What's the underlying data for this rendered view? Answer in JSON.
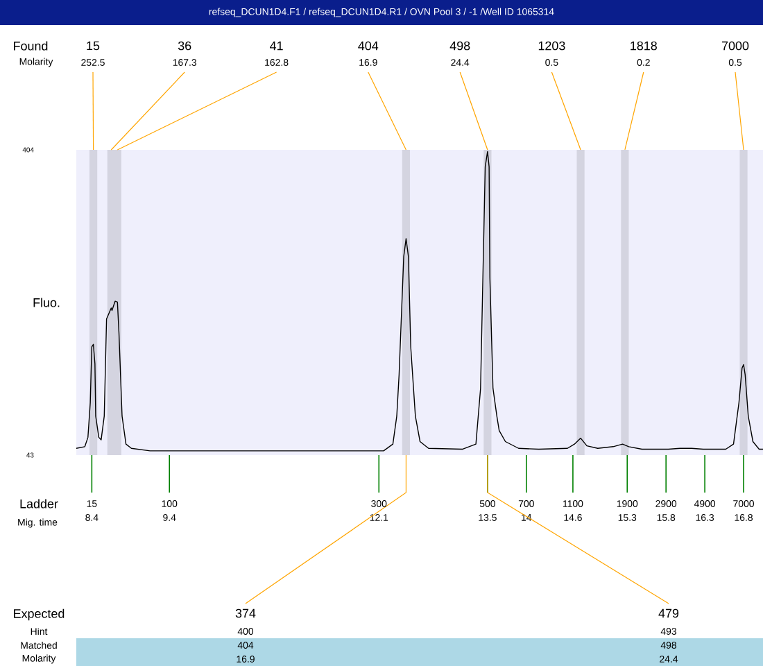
{
  "chart_data": {
    "type": "line",
    "title": "refseq_DCUN1D4.F1 / refseq_DCUN1D4.R1 / OVN Pool 3 / -1 /Well ID 1065314",
    "ylabel": "Fluo.",
    "xlabel": "Mig. time",
    "series": [
      {
        "color": "#000000",
        "x": [
          8.2,
          8.31,
          8.35,
          8.38,
          8.4,
          8.42,
          8.44,
          8.45,
          8.49,
          8.52,
          8.56,
          8.59,
          8.65,
          8.66,
          8.7,
          8.73,
          8.75,
          8.79,
          8.84,
          8.91,
          9.15,
          9.64,
          10.09,
          10.55,
          11.3,
          11.98,
          12.16,
          12.28,
          12.33,
          12.36,
          12.42,
          12.45,
          12.48,
          12.51,
          12.57,
          12.63,
          12.74,
          13.18,
          13.35,
          13.41,
          13.44,
          13.47,
          13.5,
          13.52,
          13.53,
          13.57,
          13.62,
          13.65,
          13.73,
          13.9,
          14.16,
          14.53,
          14.62,
          14.7,
          14.78,
          14.92,
          15.12,
          15.24,
          15.32,
          15.49,
          15.83,
          15.98,
          16.13,
          16.28,
          16.57,
          16.67,
          16.74,
          16.78,
          16.8,
          16.82,
          16.86,
          16.92,
          17.0,
          17.05
        ],
        "values": [
          51,
          53,
          64,
          105,
          171,
          174,
          151,
          89,
          64,
          61,
          89,
          204,
          217,
          214,
          225,
          224,
          187,
          89,
          56,
          51,
          48,
          48,
          48,
          48,
          48,
          48,
          48,
          56,
          89,
          138,
          278,
          299,
          278,
          171,
          89,
          59,
          51,
          50,
          56,
          122,
          253,
          384,
          402,
          384,
          253,
          122,
          89,
          72,
          59,
          51,
          50,
          51,
          56,
          63,
          54,
          51,
          53,
          56,
          53,
          50,
          50,
          51,
          51,
          50,
          50,
          56,
          105,
          146,
          150,
          138,
          89,
          59,
          50,
          50
        ]
      }
    ],
    "xlim": [
      8.2,
      17.05
    ],
    "ylim": [
      43,
      404
    ],
    "yticks": [
      43,
      404
    ],
    "xticks": [
      8.4,
      9.4,
      12.1,
      13.5,
      14,
      14.6,
      15.3,
      15.8,
      16.3,
      16.8
    ],
    "bands": [
      {
        "axis": "x",
        "from": 8.37,
        "to": 8.47,
        "color": "#d4d4e0"
      },
      {
        "axis": "x",
        "from": 8.6,
        "to": 8.7,
        "color": "#d4d4e0"
      },
      {
        "axis": "x",
        "from": 8.68,
        "to": 8.78,
        "color": "#d4d4e0"
      },
      {
        "axis": "x",
        "from": 12.4,
        "to": 12.5,
        "color": "#d4d4e0"
      },
      {
        "axis": "x",
        "from": 13.45,
        "to": 13.55,
        "color": "#d4d4e0"
      },
      {
        "axis": "x",
        "from": 14.65,
        "to": 14.75,
        "color": "#d4d4e0"
      },
      {
        "axis": "x",
        "from": 15.22,
        "to": 15.32,
        "color": "#d4d4e0"
      },
      {
        "axis": "x",
        "from": 16.75,
        "to": 16.85,
        "color": "#d4d4e0"
      }
    ],
    "annotations": [
      "Found",
      "Molarity",
      "15",
      "36",
      "41",
      "404",
      "498",
      "1203",
      "1818",
      "7000",
      {
        "text": "252.5",
        "x": 8.42,
        "y": 404
      },
      {
        "text": "167.3",
        "x": 8.65,
        "y": 404
      },
      {
        "text": "162.8",
        "x": 8.73,
        "y": 404
      },
      {
        "text": "16.9",
        "x": 12.45,
        "y": 404
      },
      {
        "text": "24.4",
        "x": 13.5,
        "y": 404
      },
      {
        "text": "0.5",
        "x": 14.7,
        "y": 404
      },
      {
        "text": "0.2",
        "x": 15.27,
        "y": 404
      },
      {
        "text": "0.5",
        "x": 16.8,
        "y": 404
      },
      "Expected",
      "Hint",
      "Matched",
      "Molarity",
      {
        "text": "374",
        "x": 12.45,
        "y": 43
      },
      {
        "text": "479",
        "x": 13.5,
        "y": 43
      },
      "400",
      "493",
      "404",
      "498",
      "16.9",
      "24.4",
      "Ladder",
      {
        "text": "15",
        "x": 8.4,
        "y": 43
      },
      {
        "text": "100",
        "x": 9.4,
        "y": 43
      },
      {
        "text": "300",
        "x": 12.1,
        "y": 43
      },
      {
        "text": "500",
        "x": 13.5,
        "y": 43
      },
      {
        "text": "700",
        "x": 14,
        "y": 43
      },
      {
        "text": "1100",
        "x": 14.6,
        "y": 43
      },
      {
        "text": "1900",
        "x": 15.3,
        "y": 43
      },
      {
        "text": "2900",
        "x": 15.8,
        "y": 43
      },
      {
        "text": "4900",
        "x": 16.3,
        "y": 43
      },
      {
        "text": "7000",
        "x": 16.8,
        "y": 43
      }
    ]
  }
}
